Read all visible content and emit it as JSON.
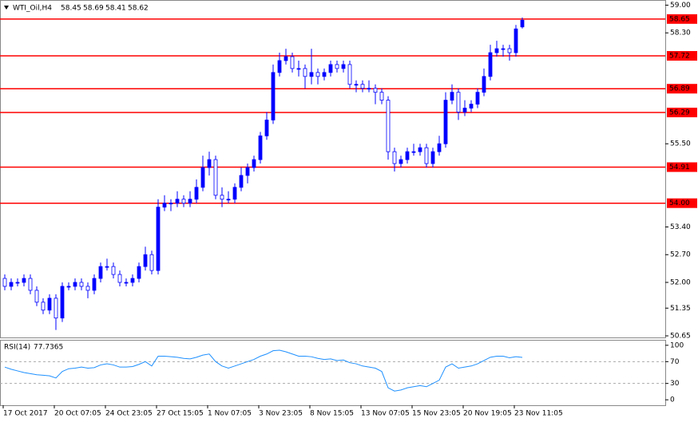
{
  "chart_data": {
    "type": "candlestick",
    "title": "WTI_Oil,H4",
    "header_values": [
      58.45,
      58.69,
      58.41,
      58.62
    ],
    "up_color": "#0000ff",
    "down_color": "#ffffff",
    "edge_color": "#0000ff",
    "categories": [
      "17 Oct 2017",
      null,
      null,
      null,
      null,
      null,
      null,
      null,
      "20 Oct 07:05",
      null,
      null,
      null,
      null,
      null,
      null,
      null,
      "24 Oct 23:05",
      null,
      null,
      null,
      null,
      null,
      null,
      null,
      "27 Oct 15:05",
      null,
      null,
      null,
      null,
      null,
      null,
      null,
      "1 Nov 07:05",
      null,
      null,
      null,
      null,
      null,
      null,
      null,
      "3 Nov 23:05",
      null,
      null,
      null,
      null,
      null,
      null,
      null,
      "8 Nov 15:05",
      null,
      null,
      null,
      null,
      null,
      null,
      null,
      "13 Nov 07:05",
      null,
      null,
      null,
      null,
      null,
      null,
      null,
      "15 Nov 23:05",
      null,
      null,
      null,
      null,
      null,
      null,
      null,
      "20 Nov 19:05",
      null,
      null,
      null,
      null,
      null,
      null,
      null,
      "23 Nov 11:05",
      null
    ],
    "open": [
      52.1,
      51.9,
      52.0,
      52.0,
      52.1,
      51.8,
      51.5,
      51.3,
      51.6,
      51.1,
      51.9,
      51.9,
      52.0,
      51.9,
      51.8,
      52.1,
      52.4,
      52.4,
      52.2,
      52.0,
      52.0,
      52.1,
      52.4,
      52.7,
      52.3,
      53.9,
      54.0,
      54.0,
      54.1,
      54.0,
      54.1,
      54.4,
      54.9,
      55.1,
      54.2,
      54.1,
      54.1,
      54.4,
      54.7,
      54.9,
      55.1,
      55.7,
      56.1,
      57.3,
      57.6,
      57.7,
      57.4,
      57.4,
      57.2,
      57.3,
      57.2,
      57.3,
      57.5,
      57.4,
      57.5,
      57.0,
      57.0,
      56.9,
      56.9,
      56.8,
      56.6,
      55.3,
      55.0,
      55.1,
      55.3,
      55.3,
      55.4,
      55.0,
      55.3,
      55.5,
      56.6,
      56.8,
      56.3,
      56.4,
      56.5,
      56.8,
      57.2,
      57.8,
      57.9,
      57.9,
      57.8,
      58.45
    ],
    "high": [
      52.2,
      52.1,
      52.1,
      52.2,
      52.2,
      51.9,
      51.6,
      51.7,
      51.7,
      52.0,
      52.0,
      52.1,
      52.1,
      52.0,
      52.2,
      52.5,
      52.6,
      52.5,
      52.3,
      52.1,
      52.2,
      52.5,
      52.9,
      52.8,
      54.1,
      54.2,
      54.1,
      54.3,
      54.2,
      54.3,
      54.6,
      55.2,
      55.3,
      55.2,
      54.4,
      54.3,
      54.5,
      54.9,
      55.0,
      55.2,
      55.8,
      56.3,
      57.5,
      57.8,
      57.9,
      57.8,
      57.6,
      57.5,
      57.9,
      57.4,
      57.4,
      57.6,
      57.6,
      57.6,
      57.6,
      57.1,
      57.1,
      57.1,
      57.0,
      56.9,
      56.7,
      55.4,
      55.2,
      55.4,
      55.5,
      55.5,
      55.5,
      55.4,
      55.7,
      56.8,
      57.0,
      56.9,
      56.6,
      56.6,
      56.9,
      57.4,
      58.0,
      58.1,
      58.0,
      58.0,
      58.5,
      58.69
    ],
    "low": [
      51.8,
      51.8,
      51.9,
      51.9,
      51.7,
      51.4,
      51.2,
      51.2,
      50.8,
      51.0,
      51.8,
      51.8,
      51.8,
      51.6,
      51.7,
      52.0,
      52.3,
      52.1,
      51.9,
      51.9,
      51.9,
      52.0,
      52.3,
      52.2,
      52.2,
      53.8,
      53.8,
      53.9,
      53.9,
      53.9,
      54.0,
      54.3,
      54.7,
      54.1,
      53.9,
      54.0,
      54.0,
      54.3,
      54.5,
      54.8,
      55.0,
      55.6,
      56.0,
      57.2,
      57.5,
      57.3,
      57.2,
      56.9,
      57.0,
      57.0,
      57.1,
      57.2,
      57.3,
      57.3,
      56.9,
      56.8,
      56.8,
      56.8,
      56.5,
      56.5,
      55.1,
      54.8,
      54.9,
      55.0,
      55.2,
      55.2,
      54.9,
      54.9,
      55.2,
      55.4,
      56.5,
      56.1,
      56.2,
      56.3,
      56.4,
      56.7,
      57.1,
      57.7,
      57.7,
      57.6,
      57.7,
      58.41
    ],
    "close": [
      51.9,
      52.0,
      52.0,
      52.1,
      51.8,
      51.5,
      51.3,
      51.6,
      51.1,
      51.9,
      51.9,
      52.0,
      51.9,
      51.8,
      52.1,
      52.4,
      52.4,
      52.2,
      52.0,
      52.0,
      52.1,
      52.4,
      52.7,
      52.3,
      53.9,
      54.0,
      54.0,
      54.1,
      54.0,
      54.1,
      54.4,
      54.9,
      55.1,
      54.2,
      54.1,
      54.1,
      54.4,
      54.7,
      54.9,
      55.1,
      55.7,
      56.1,
      57.3,
      57.6,
      57.7,
      57.4,
      57.4,
      57.2,
      57.3,
      57.2,
      57.3,
      57.5,
      57.4,
      57.5,
      57.0,
      57.0,
      56.9,
      56.9,
      56.8,
      56.6,
      55.3,
      55.0,
      55.1,
      55.3,
      55.3,
      55.4,
      55.0,
      55.3,
      55.5,
      56.6,
      56.8,
      56.3,
      56.4,
      56.5,
      56.8,
      57.2,
      57.8,
      57.9,
      57.9,
      57.8,
      58.4,
      58.62
    ],
    "ylim": [
      50.61,
      59.13
    ],
    "yticks": [
      {
        "value": 59,
        "label": "59.00"
      },
      {
        "value": 58.3,
        "label": "58.30"
      },
      {
        "value": 55.5,
        "label": "55.50"
      },
      {
        "value": 53.4,
        "label": "53.40"
      },
      {
        "value": 52.7,
        "label": "52.70"
      },
      {
        "value": 52,
        "label": "52.00"
      },
      51.35,
      50.65
    ],
    "levels": [
      {
        "value": 58.65,
        "label": "58.65"
      },
      {
        "value": 57.72,
        "label": "57.72"
      },
      {
        "value": 56.89,
        "label": "56.89"
      },
      {
        "value": 56.29,
        "label": "56.29"
      },
      {
        "value": 54.91,
        "label": "54.91"
      },
      {
        "value": 54,
        "label": "54.00"
      }
    ],
    "level_color": "#ff0000",
    "rsi": {
      "title": "RSI(14)",
      "value": 77.7365,
      "color": "#1e90ff",
      "ylim": [
        -10,
        110
      ],
      "yticks": [
        100,
        70,
        30,
        0
      ],
      "levels": [
        70,
        30
      ],
      "values": [
        60,
        56,
        53,
        50,
        48,
        46,
        45,
        44,
        40,
        52,
        57,
        58,
        60,
        58,
        59,
        64,
        66,
        64,
        60,
        60,
        61,
        65,
        70,
        62,
        80,
        80,
        79,
        78,
        76,
        75,
        78,
        82,
        84,
        70,
        62,
        58,
        62,
        66,
        70,
        74,
        80,
        84,
        90,
        91,
        88,
        84,
        80,
        80,
        79,
        76,
        74,
        75,
        72,
        73,
        68,
        66,
        62,
        60,
        58,
        52,
        22,
        16,
        18,
        22,
        24,
        26,
        24,
        30,
        36,
        60,
        66,
        58,
        60,
        62,
        66,
        72,
        78,
        80,
        80,
        77,
        79,
        77.7365
      ]
    }
  }
}
